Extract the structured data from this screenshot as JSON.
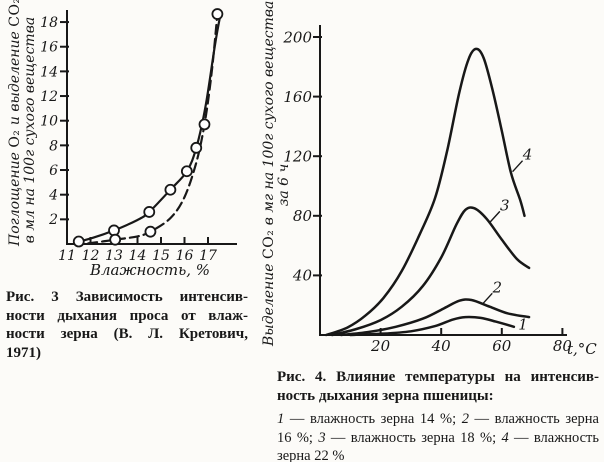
{
  "page": {
    "bg": "#fcfbf8",
    "ink": "#181818"
  },
  "chart_data": [
    {
      "id": "fig3",
      "type": "line",
      "title": "Рис. 3 Зависимость интенсивности дыхания проса от влажности зерна (В. Л. Кретович, 1971)",
      "xlabel": "Влажность, %",
      "ylabel": "Поглощение O₂ и выделение CO₂ в мл на 100г сухого вещества",
      "ylabel_line1_pre": "Поглощение ",
      "ylabel_line1_o2": "O₂",
      "ylabel_line1_mid": " и выделение ",
      "ylabel_line1_co2": "CO₂",
      "ylabel_line2": "в мл на 100г сухого вещества",
      "xlim": [
        11,
        17.8
      ],
      "ylim": [
        0,
        19
      ],
      "xticks": [
        11,
        12,
        13,
        14,
        15,
        16,
        17
      ],
      "yticks": [
        2,
        4,
        6,
        8,
        10,
        12,
        14,
        16,
        18
      ],
      "grid": false,
      "legend_position": "none",
      "series": [
        {
          "name": "solid",
          "dash": false,
          "points": [
            [
              11.3,
              0.1
            ],
            [
              12.1,
              0.5
            ],
            [
              13,
              1.1
            ],
            [
              14,
              1.95
            ],
            [
              14.5,
              2.6
            ],
            [
              15.4,
              4.4
            ],
            [
              16.1,
              5.9
            ],
            [
              16.5,
              7.8
            ],
            [
              16.9,
              11.2
            ],
            [
              17.3,
              16.2
            ],
            [
              17.55,
              18.8
            ]
          ]
        },
        {
          "name": "dashed",
          "dash": true,
          "points": [
            [
              11.9,
              0.05
            ],
            [
              13.05,
              0.35
            ],
            [
              14,
              0.62
            ],
            [
              14.55,
              1.0
            ],
            [
              15.4,
              2.1
            ],
            [
              16.0,
              3.8
            ],
            [
              16.5,
              6.6
            ],
            [
              16.85,
              9.7
            ],
            [
              17.15,
              13.8
            ],
            [
              17.4,
              18.65
            ]
          ]
        }
      ],
      "markers": [
        [
          11.5,
          0.2
        ],
        [
          13.0,
          1.1
        ],
        [
          13.05,
          0.35
        ],
        [
          14.5,
          2.6
        ],
        [
          14.55,
          1.0
        ],
        [
          15.4,
          4.4
        ],
        [
          16.1,
          5.9
        ],
        [
          16.5,
          7.8
        ],
        [
          16.85,
          9.7
        ],
        [
          17.4,
          18.65
        ]
      ],
      "curve_labels": []
    },
    {
      "id": "fig4",
      "type": "line",
      "title": "Рис. 4. Влияние температуры на интенсивность дыхания зерна пшеницы",
      "xlabel": "t,°C",
      "ylabel": "Выделение CO₂ в мг на 100г сухого вещества за 6 ч",
      "ylabel_line1_pre": "Выделение ",
      "ylabel_line1_co2": "CO₂",
      "ylabel_line1_post": " в мг на 100г сухого вещества",
      "ylabel_line2": "за 6 ч",
      "xlim": [
        0,
        86
      ],
      "ylim": [
        0,
        206
      ],
      "xticks": [
        20,
        40,
        60,
        80
      ],
      "yticks": [
        40,
        80,
        120,
        160,
        200
      ],
      "grid": false,
      "legend_position": "below-caption",
      "series": [
        {
          "name": "1",
          "moisture": "влажность зерна 14 %",
          "dash": false,
          "points": [
            [
              10,
              0
            ],
            [
              20,
              0.8
            ],
            [
              30,
              2.5
            ],
            [
              38,
              6
            ],
            [
              44,
              10.5
            ],
            [
              48,
              12
            ],
            [
              53,
              11.5
            ],
            [
              58,
              9
            ],
            [
              64,
              5.5
            ]
          ]
        },
        {
          "name": "2",
          "moisture": "влажность зерна 16 %",
          "dash": false,
          "points": [
            [
              7,
              0
            ],
            [
              16,
              2
            ],
            [
              25,
              5.5
            ],
            [
              34,
              11
            ],
            [
              41,
              18
            ],
            [
              46,
              23
            ],
            [
              50,
              23.5
            ],
            [
              56,
              19
            ],
            [
              62,
              14.5
            ],
            [
              69,
              12
            ]
          ]
        },
        {
          "name": "3",
          "moisture": "влажность зерна 18 %",
          "dash": false,
          "points": [
            [
              4,
              0
            ],
            [
              12,
              4
            ],
            [
              20,
              10
            ],
            [
              27,
              19
            ],
            [
              34,
              33
            ],
            [
              40,
              52
            ],
            [
              45,
              74
            ],
            [
              48,
              84
            ],
            [
              51,
              85
            ],
            [
              55,
              78
            ],
            [
              60,
              64
            ],
            [
              65,
              51
            ],
            [
              69,
              45
            ]
          ]
        },
        {
          "name": "4",
          "moisture": "влажность зерна 22 %",
          "dash": false,
          "points": [
            [
              2,
              0
            ],
            [
              9,
              5
            ],
            [
              15,
              13
            ],
            [
              21,
              25
            ],
            [
              27,
              43
            ],
            [
              33,
              68
            ],
            [
              38,
              92
            ],
            [
              42,
              124
            ],
            [
              46,
              163
            ],
            [
              49,
              185
            ],
            [
              51.5,
              192
            ],
            [
              54,
              186
            ],
            [
              57,
              164
            ],
            [
              60,
              137
            ],
            [
              63,
              109
            ],
            [
              66,
              91
            ],
            [
              67.5,
              80
            ]
          ]
        }
      ],
      "markers": [],
      "curve_labels": [
        {
          "text": "1",
          "x": 67,
          "y": 7,
          "leader": false
        },
        {
          "text": "2",
          "x": 58.5,
          "y": 32,
          "leader": true
        },
        {
          "text": "3",
          "x": 61,
          "y": 87,
          "leader": true
        },
        {
          "text": "4",
          "x": 68.5,
          "y": 121,
          "leader": true
        }
      ]
    }
  ],
  "figure3_caption": {
    "lines": [
      "Рис. 3  Зависимость интенсив-",
      "ности дыхания проса от влаж-",
      "ности зерна (В. Л. Кретович,",
      "1971)"
    ]
  },
  "figure4_caption": {
    "heading_lines": [
      "Рис. 4. Влияние температуры на интенсив-",
      "ность дыхания зерна пшеницы:"
    ],
    "legend_lines": [
      [
        {
          "t": "1",
          "i": true
        },
        {
          "t": " — влажность зерна 14 %; ",
          "i": false
        },
        {
          "t": "2",
          "i": true
        },
        {
          "t": " — влажность зерна",
          "i": false
        }
      ],
      [
        {
          "t": "16 %; ",
          "i": false
        },
        {
          "t": "3",
          "i": true
        },
        {
          "t": " — влажность зерна 18 %; ",
          "i": false
        },
        {
          "t": "4",
          "i": true
        },
        {
          "t": " — влажность",
          "i": false
        }
      ],
      [
        {
          "t": "зерна 22 %",
          "i": false
        }
      ]
    ]
  }
}
